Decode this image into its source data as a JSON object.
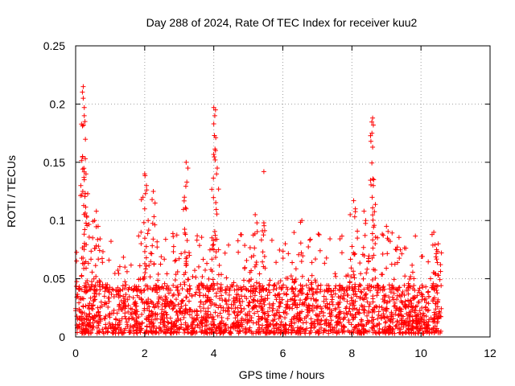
{
  "chart_data": {
    "type": "scatter",
    "title": "Day 288 of 2024, Rate Of TEC Index for receiver kuu2",
    "xlabel": "GPS time / hours",
    "ylabel": "ROTI / TECUs",
    "xlim": [
      0,
      12
    ],
    "ylim": [
      0,
      0.25
    ],
    "x_ticks": [
      "0",
      "2",
      "4",
      "6",
      "8",
      "10",
      "12"
    ],
    "y_ticks": [
      "0",
      "0.05",
      "0.1",
      "0.15",
      "0.2",
      "0.25"
    ],
    "grid": true,
    "marker": "+",
    "marker_color": "#ff0000",
    "data_range_x": [
      0,
      10.6
    ],
    "background_band": {
      "x_from": 0,
      "x_to": 10.6,
      "y_from": 0.003,
      "y_to": 0.045
    },
    "notable_points": [
      {
        "x": 0.22,
        "y": 0.215
      },
      {
        "x": 0.22,
        "y": 0.205
      },
      {
        "x": 0.25,
        "y": 0.197
      },
      {
        "x": 0.25,
        "y": 0.19
      },
      {
        "x": 0.27,
        "y": 0.185
      },
      {
        "x": 0.23,
        "y": 0.182
      },
      {
        "x": 0.2,
        "y": 0.155
      },
      {
        "x": 0.28,
        "y": 0.153
      },
      {
        "x": 0.3,
        "y": 0.14
      },
      {
        "x": 0.25,
        "y": 0.135
      },
      {
        "x": 0.15,
        "y": 0.13
      },
      {
        "x": 0.35,
        "y": 0.123
      },
      {
        "x": 0.6,
        "y": 0.108
      },
      {
        "x": 0.55,
        "y": 0.1
      },
      {
        "x": 0.65,
        "y": 0.095
      },
      {
        "x": 2.0,
        "y": 0.14
      },
      {
        "x": 2.05,
        "y": 0.13
      },
      {
        "x": 1.95,
        "y": 0.12
      },
      {
        "x": 2.25,
        "y": 0.125
      },
      {
        "x": 2.3,
        "y": 0.115
      },
      {
        "x": 2.0,
        "y": 0.11
      },
      {
        "x": 2.1,
        "y": 0.1
      },
      {
        "x": 3.2,
        "y": 0.15
      },
      {
        "x": 3.25,
        "y": 0.145
      },
      {
        "x": 3.22,
        "y": 0.133
      },
      {
        "x": 3.15,
        "y": 0.12
      },
      {
        "x": 3.2,
        "y": 0.11
      },
      {
        "x": 4.0,
        "y": 0.197
      },
      {
        "x": 4.05,
        "y": 0.195
      },
      {
        "x": 4.03,
        "y": 0.19
      },
      {
        "x": 4.0,
        "y": 0.183
      },
      {
        "x": 4.02,
        "y": 0.173
      },
      {
        "x": 4.05,
        "y": 0.16
      },
      {
        "x": 4.1,
        "y": 0.145
      },
      {
        "x": 4.08,
        "y": 0.14
      },
      {
        "x": 5.45,
        "y": 0.142
      },
      {
        "x": 5.2,
        "y": 0.105
      },
      {
        "x": 5.25,
        "y": 0.098
      },
      {
        "x": 5.45,
        "y": 0.098
      },
      {
        "x": 6.55,
        "y": 0.1
      },
      {
        "x": 7.95,
        "y": 0.105
      },
      {
        "x": 8.05,
        "y": 0.117
      },
      {
        "x": 8.1,
        "y": 0.11
      },
      {
        "x": 8.35,
        "y": 0.108
      },
      {
        "x": 8.4,
        "y": 0.1
      },
      {
        "x": 8.6,
        "y": 0.188
      },
      {
        "x": 8.62,
        "y": 0.182
      },
      {
        "x": 8.58,
        "y": 0.175
      },
      {
        "x": 8.55,
        "y": 0.168
      },
      {
        "x": 8.6,
        "y": 0.163
      },
      {
        "x": 8.63,
        "y": 0.135
      },
      {
        "x": 8.62,
        "y": 0.13
      },
      {
        "x": 9.0,
        "y": 0.095
      },
      {
        "x": 10.5,
        "y": 0.08
      },
      {
        "x": 10.45,
        "y": 0.075
      }
    ]
  }
}
